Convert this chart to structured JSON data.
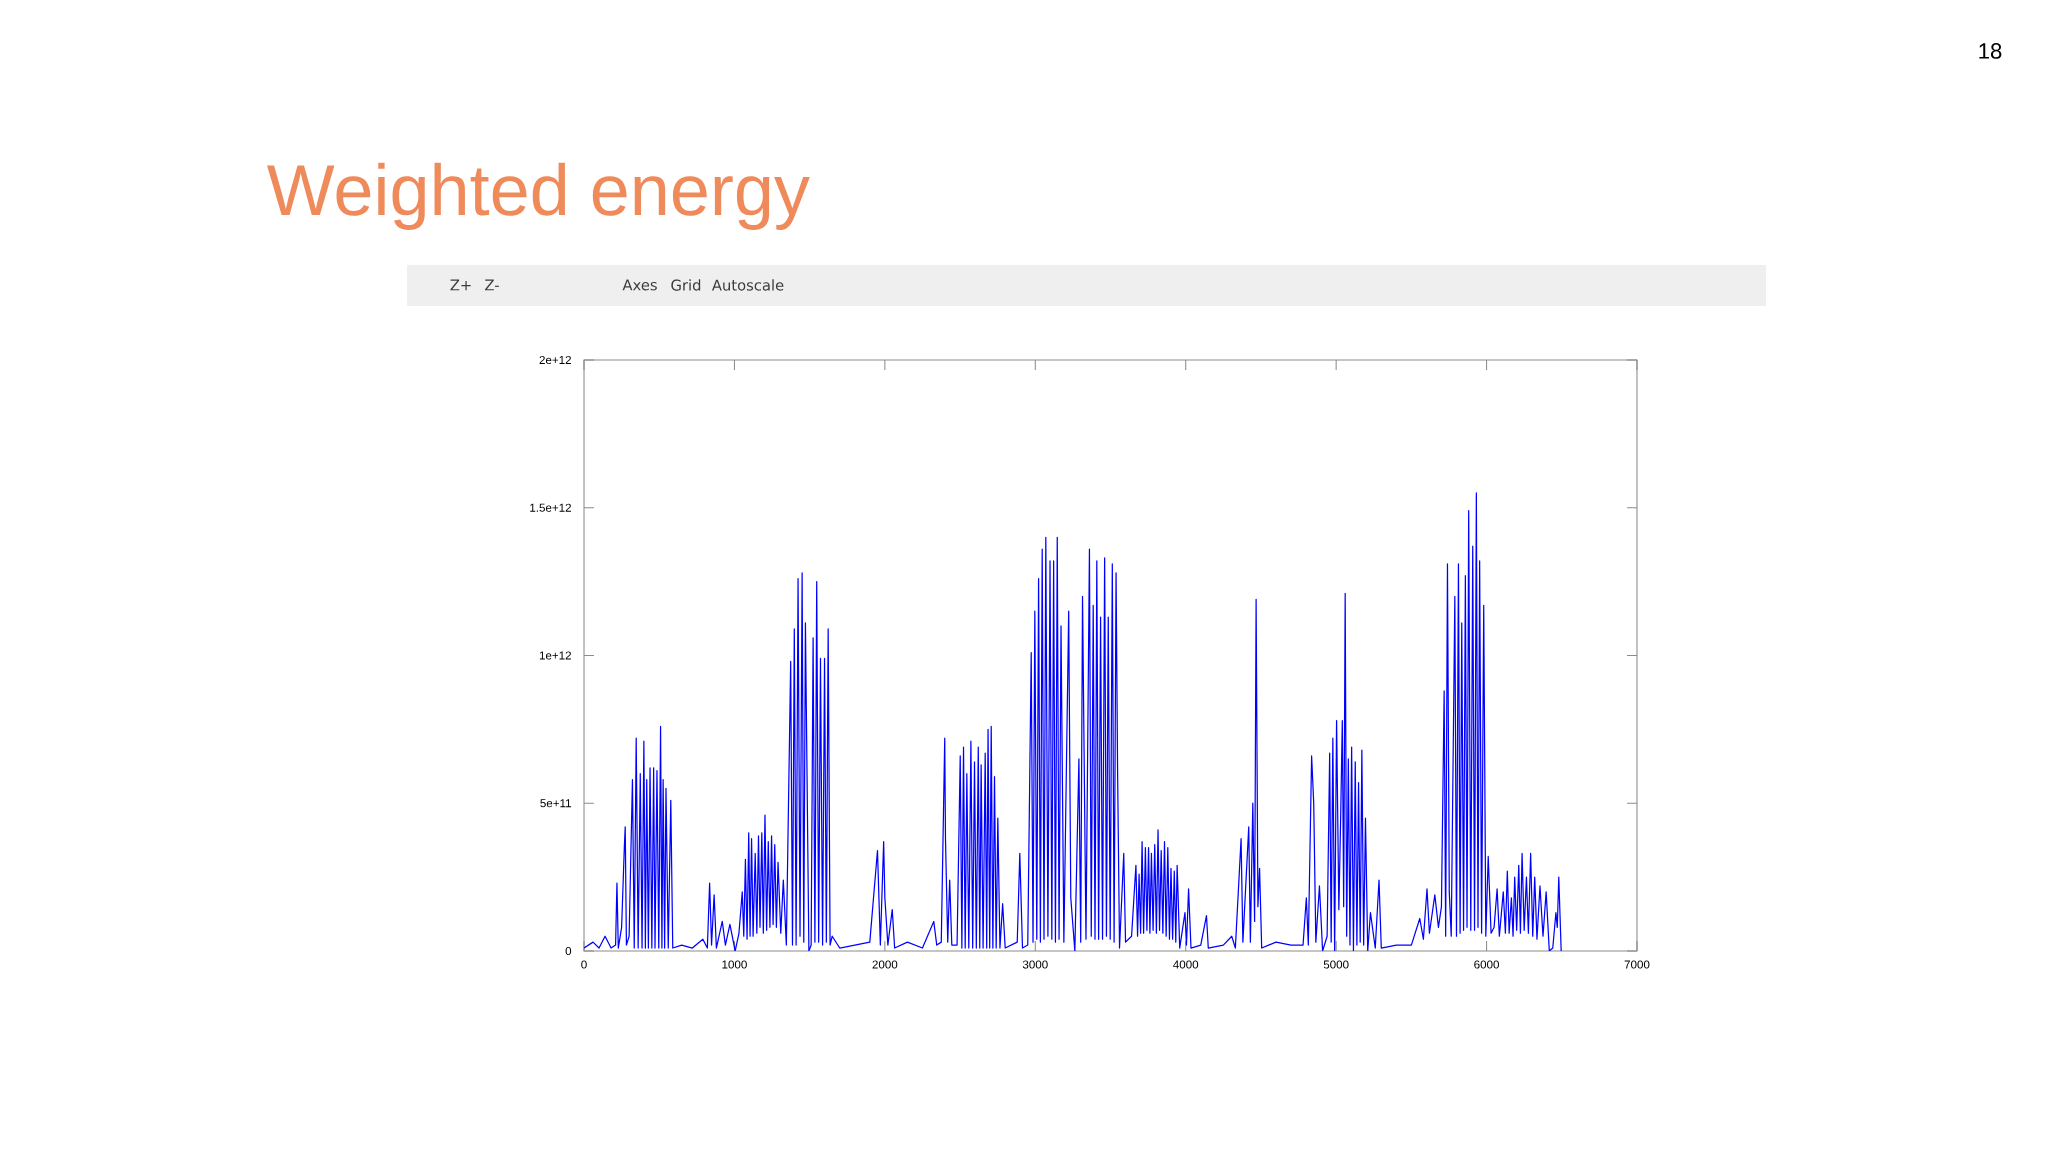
{
  "chart_data": {
    "type": "line",
    "title": "Weighted energy",
    "annotations": [
      "18",
      "Z+",
      "Z-",
      "Axes",
      "Grid",
      "Autoscale"
    ],
    "color": "#0000ff",
    "xlim": [
      0,
      7000
    ],
    "xticks": [
      0,
      1000,
      2000,
      3000,
      4000,
      5000,
      6000,
      7000
    ],
    "ylim": [
      0,
      2000000000000.0
    ],
    "yticks": [
      0,
      {
        "value": 500000000000.0,
        "label": "5e+11"
      },
      {
        "value": 1000000000000.0,
        "label": "1e+12"
      },
      {
        "value": 1500000000000.0,
        "label": "1.5e+12"
      },
      {
        "value": 2000000000000.0,
        "label": "2e+12"
      }
    ],
    "x": [
      0,
      60,
      100,
      140,
      180,
      210,
      219,
      228,
      250,
      268,
      274,
      282,
      300,
      322,
      334,
      347,
      360,
      374,
      386,
      398,
      408,
      417,
      428,
      439,
      451,
      463,
      472,
      485,
      497,
      509,
      518,
      526,
      536,
      545,
      560,
      577,
      590,
      650,
      720,
      790,
      820,
      835,
      848,
      865,
      880,
      919,
      940,
      970,
      1005,
      1030,
      1052,
      1062,
      1073,
      1084,
      1095,
      1104,
      1114,
      1124,
      1138,
      1149,
      1160,
      1170,
      1182,
      1192,
      1203,
      1214,
      1225,
      1236,
      1247,
      1257,
      1268,
      1279,
      1290,
      1308,
      1325,
      1345,
      1374,
      1386,
      1398,
      1410,
      1423,
      1436,
      1450,
      1461,
      1472,
      1495,
      1510,
      1523,
      1535,
      1547,
      1560,
      1572,
      1586,
      1599,
      1611,
      1623,
      1636,
      1650,
      1700,
      1800,
      1900,
      1951,
      1970,
      1992,
      2000,
      2020,
      2049,
      2065,
      2150,
      2250,
      2325,
      2345,
      2375,
      2398,
      2403,
      2418,
      2431,
      2445,
      2480,
      2501,
      2512,
      2523,
      2534,
      2545,
      2558,
      2572,
      2584,
      2596,
      2608,
      2621,
      2631,
      2640,
      2653,
      2667,
      2677,
      2686,
      2697,
      2707,
      2718,
      2729,
      2740,
      2751,
      2765,
      2783,
      2800,
      2880,
      2897,
      2915,
      2950,
      2973,
      2985,
      2997,
      3010,
      3022,
      3034,
      3046,
      3058,
      3070,
      3084,
      3098,
      3110,
      3122,
      3134,
      3146,
      3158,
      3171,
      3190,
      3222,
      3236,
      3263,
      3290,
      3302,
      3314,
      3337,
      3360,
      3372,
      3385,
      3397,
      3409,
      3421,
      3434,
      3447,
      3461,
      3473,
      3485,
      3498,
      3512,
      3524,
      3537,
      3547,
      3560,
      3588,
      3600,
      3640,
      3669,
      3680,
      3690,
      3700,
      3710,
      3720,
      3732,
      3742,
      3753,
      3762,
      3772,
      3783,
      3794,
      3805,
      3816,
      3826,
      3837,
      3848,
      3859,
      3870,
      3881,
      3892,
      3902,
      3913,
      3924,
      3934,
      3943,
      3960,
      3995,
      4005,
      4019,
      4035,
      4100,
      4138,
      4150,
      4250,
      4306,
      4330,
      4368,
      4380,
      4419,
      4430,
      4446,
      4458,
      4468,
      4480,
      4491,
      4505,
      4600,
      4700,
      4780,
      4802,
      4815,
      4837,
      4851,
      4865,
      4889,
      4910,
      4940,
      4957,
      4967,
      4978,
      4990,
      5003,
      5018,
      5030,
      5041,
      5050,
      5060,
      5070,
      5081,
      5092,
      5103,
      5115,
      5127,
      5138,
      5149,
      5160,
      5171,
      5183,
      5195,
      5210,
      5228,
      5260,
      5285,
      5300,
      5400,
      5500,
      5556,
      5580,
      5604,
      5620,
      5656,
      5680,
      5700,
      5718,
      5728,
      5740,
      5752,
      5765,
      5789,
      5800,
      5813,
      5824,
      5835,
      5847,
      5859,
      5870,
      5881,
      5895,
      5908,
      5920,
      5932,
      5943,
      5954,
      5967,
      5981,
      5995,
      6011,
      6030,
      6050,
      6070,
      6085,
      6111,
      6125,
      6138,
      6150,
      6165,
      6176,
      6187,
      6200,
      6214,
      6225,
      6236,
      6250,
      6265,
      6278,
      6293,
      6307,
      6320,
      6335,
      6355,
      6375,
      6396,
      6417,
      6440,
      6461,
      6470,
      6480,
      6496
    ],
    "values": [
      10000000000.0,
      30000000000.0,
      10000000000.0,
      50000000000.0,
      10000000000.0,
      20000000000.0,
      230000000000.0,
      10000000000.0,
      80000000000.0,
      350000000000.0,
      420000000000.0,
      20000000000.0,
      50000000000.0,
      580000000000.0,
      10000000000.0,
      720000000000.0,
      10000000000.0,
      600000000000.0,
      10000000000.0,
      710000000000.0,
      10000000000.0,
      580000000000.0,
      10000000000.0,
      620000000000.0,
      10000000000.0,
      620000000000.0,
      10000000000.0,
      610000000000.0,
      10000000000.0,
      760000000000.0,
      10000000000.0,
      580000000000.0,
      10000000000.0,
      550000000000.0,
      10000000000.0,
      510000000000.0,
      10000000000.0,
      20000000000.0,
      10000000000.0,
      40000000000.0,
      10000000000.0,
      230000000000.0,
      20000000000.0,
      190000000000.0,
      10000000000.0,
      100000000000.0,
      20000000000.0,
      90000000000.0,
      0,
      60000000000.0,
      200000000000.0,
      50000000000.0,
      310000000000.0,
      40000000000.0,
      400000000000.0,
      50000000000.0,
      380000000000.0,
      50000000000.0,
      330000000000.0,
      60000000000.0,
      390000000000.0,
      80000000000.0,
      400000000000.0,
      60000000000.0,
      460000000000.0,
      70000000000.0,
      370000000000.0,
      80000000000.0,
      390000000000.0,
      90000000000.0,
      360000000000.0,
      80000000000.0,
      300000000000.0,
      60000000000.0,
      240000000000.0,
      20000000000.0,
      980000000000.0,
      20000000000.0,
      1090000000000.0,
      20000000000.0,
      1260000000000.0,
      50000000000.0,
      1280000000000.0,
      30000000000.0,
      1110000000000.0,
      0,
      20000000000.0,
      1060000000000.0,
      30000000000.0,
      1250000000000.0,
      30000000000.0,
      990000000000.0,
      20000000000.0,
      990000000000.0,
      30000000000.0,
      1090000000000.0,
      20000000000.0,
      50000000000.0,
      10000000000.0,
      20000000000.0,
      30000000000.0,
      340000000000.0,
      20000000000.0,
      370000000000.0,
      180000000000.0,
      20000000000.0,
      140000000000.0,
      10000000000.0,
      30000000000.0,
      10000000000.0,
      100000000000.0,
      20000000000.0,
      30000000000.0,
      720000000000.0,
      380000000000.0,
      30000000000.0,
      240000000000.0,
      20000000000.0,
      20000000000.0,
      660000000000.0,
      10000000000.0,
      690000000000.0,
      10000000000.0,
      600000000000.0,
      10000000000.0,
      710000000000.0,
      10000000000.0,
      640000000000.0,
      10000000000.0,
      690000000000.0,
      10000000000.0,
      630000000000.0,
      10000000000.0,
      670000000000.0,
      10000000000.0,
      750000000000.0,
      10000000000.0,
      760000000000.0,
      10000000000.0,
      590000000000.0,
      10000000000.0,
      450000000000.0,
      10000000000.0,
      160000000000.0,
      10000000000.0,
      30000000000.0,
      330000000000.0,
      10000000000.0,
      20000000000.0,
      1010000000000.0,
      30000000000.0,
      1150000000000.0,
      40000000000.0,
      1260000000000.0,
      30000000000.0,
      1360000000000.0,
      40000000000.0,
      1400000000000.0,
      50000000000.0,
      1320000000000.0,
      40000000000.0,
      1320000000000.0,
      30000000000.0,
      1400000000000.0,
      40000000000.0,
      1100000000000.0,
      30000000000.0,
      1150000000000.0,
      180000000000.0,
      0,
      650000000000.0,
      30000000000.0,
      1200000000000.0,
      40000000000.0,
      1360000000000.0,
      50000000000.0,
      1170000000000.0,
      40000000000.0,
      1320000000000.0,
      40000000000.0,
      1130000000000.0,
      40000000000.0,
      1330000000000.0,
      50000000000.0,
      1130000000000.0,
      40000000000.0,
      1310000000000.0,
      30000000000.0,
      1280000000000.0,
      620000000000.0,
      10000000000.0,
      330000000000.0,
      30000000000.0,
      50000000000.0,
      290000000000.0,
      50000000000.0,
      260000000000.0,
      60000000000.0,
      370000000000.0,
      60000000000.0,
      350000000000.0,
      70000000000.0,
      350000000000.0,
      60000000000.0,
      330000000000.0,
      70000000000.0,
      360000000000.0,
      60000000000.0,
      410000000000.0,
      70000000000.0,
      340000000000.0,
      60000000000.0,
      370000000000.0,
      50000000000.0,
      350000000000.0,
      40000000000.0,
      280000000000.0,
      40000000000.0,
      270000000000.0,
      30000000000.0,
      290000000000.0,
      10000000000.0,
      130000000000.0,
      20000000000.0,
      210000000000.0,
      10000000000.0,
      20000000000.0,
      120000000000.0,
      10000000000.0,
      20000000000.0,
      50000000000.0,
      10000000000.0,
      380000000000.0,
      30000000000.0,
      420000000000.0,
      30000000000.0,
      500000000000.0,
      100000000000.0,
      1190000000000.0,
      150000000000.0,
      280000000000.0,
      10000000000.0,
      30000000000.0,
      20000000000.0,
      20000000000.0,
      180000000000.0,
      20000000000.0,
      660000000000.0,
      500000000000.0,
      30000000000.0,
      220000000000.0,
      0,
      50000000000.0,
      670000000000.0,
      30000000000.0,
      720000000000.0,
      0,
      780000000000.0,
      140000000000.0,
      450000000000.0,
      780000000000.0,
      150000000000.0,
      1210000000000.0,
      50000000000.0,
      650000000000.0,
      20000000000.0,
      690000000000.0,
      0,
      640000000000.0,
      20000000000.0,
      570000000000.0,
      30000000000.0,
      680000000000.0,
      20000000000.0,
      450000000000.0,
      0,
      130000000000.0,
      10000000000.0,
      240000000000.0,
      10000000000.0,
      20000000000.0,
      20000000000.0,
      110000000000.0,
      40000000000.0,
      210000000000.0,
      60000000000.0,
      190000000000.0,
      80000000000.0,
      150000000000.0,
      880000000000.0,
      50000000000.0,
      1310000000000.0,
      200000000000.0,
      50000000000.0,
      1200000000000.0,
      50000000000.0,
      1310000000000.0,
      60000000000.0,
      1110000000000.0,
      70000000000.0,
      1270000000000.0,
      80000000000.0,
      1490000000000.0,
      70000000000.0,
      1370000000000.0,
      70000000000.0,
      1550000000000.0,
      80000000000.0,
      1320000000000.0,
      60000000000.0,
      1170000000000.0,
      50000000000.0,
      320000000000.0,
      60000000000.0,
      80000000000.0,
      210000000000.0,
      50000000000.0,
      200000000000.0,
      60000000000.0,
      270000000000.0,
      60000000000.0,
      180000000000.0,
      50000000000.0,
      250000000000.0,
      70000000000.0,
      290000000000.0,
      60000000000.0,
      330000000000.0,
      70000000000.0,
      250000000000.0,
      60000000000.0,
      330000000000.0,
      50000000000.0,
      250000000000.0,
      40000000000.0,
      220000000000.0,
      50000000000.0,
      200000000000.0,
      0,
      10000000000.0,
      130000000000.0,
      80000000000.0,
      250000000000.0,
      0
    ]
  }
}
